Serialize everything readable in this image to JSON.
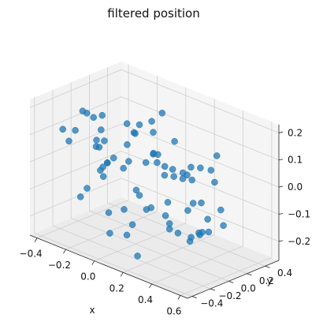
{
  "chart_data": {
    "type": "scatter",
    "title": "filtered position",
    "xlabel": "x",
    "ylabel": "y",
    "zlabel": "",
    "xlim": [
      -0.45,
      0.65
    ],
    "ylim": [
      -0.45,
      0.55
    ],
    "zlim": [
      -0.27,
      0.23
    ],
    "x_ticks": [
      -0.4,
      -0.2,
      0.0,
      0.2,
      0.4,
      0.6
    ],
    "y_ticks": [
      -0.4,
      -0.2,
      0.0,
      0.2,
      0.4
    ],
    "z_ticks": [
      -0.2,
      -0.1,
      0.0,
      0.1,
      0.2
    ],
    "x_tick_labels": [
      "−0.4",
      "−0.2",
      "0.0",
      "0.2",
      "0.4",
      "0.6"
    ],
    "y_tick_labels": [
      "−0.4",
      "−0.2",
      "0.0",
      "0.2",
      "0.4"
    ],
    "z_tick_labels": [
      "−0.2",
      "−0.1",
      "0.0",
      "0.1",
      "0.2"
    ],
    "grid": true,
    "marker_color": "#1f77b4",
    "series": [
      {
        "x": [
          -0.38,
          -0.32,
          -0.25,
          -0.18,
          -0.1,
          -0.02,
          0.06,
          0.14,
          0.22,
          0.3,
          0.38,
          0.45,
          0.5,
          0.52,
          0.48,
          -0.36,
          -0.28,
          -0.2,
          -0.12,
          -0.04,
          0.04,
          0.12,
          0.2,
          0.28,
          0.36,
          0.44,
          0.5,
          -0.34,
          -0.26,
          -0.16,
          -0.06,
          0.04,
          0.14,
          0.24,
          0.34,
          0.42,
          -0.3,
          -0.2,
          -0.1,
          0.0,
          0.1,
          0.2,
          0.3,
          0.4,
          0.46,
          -0.33,
          -0.22,
          -0.11,
          0.0,
          0.11,
          0.22,
          0.33,
          0.44,
          -0.28,
          -0.15,
          -0.02,
          0.11,
          0.24,
          0.37,
          -0.25,
          -0.1,
          0.05,
          0.2,
          0.35,
          -0.4,
          -0.35,
          0.53,
          0.55,
          0.02,
          0.18,
          -0.14,
          0.3,
          -0.06,
          0.26,
          0.4,
          -0.22
        ],
        "y": [
          -0.2,
          -0.1,
          0.05,
          0.15,
          0.2,
          -0.25,
          0.1,
          -0.05,
          0.22,
          -0.15,
          0.0,
          0.12,
          -0.08,
          0.05,
          -0.18,
          0.18,
          -0.22,
          0.02,
          -0.12,
          0.24,
          -0.02,
          0.14,
          -0.2,
          0.08,
          -0.1,
          0.2,
          0.15,
          0.0,
          0.1,
          -0.18,
          0.06,
          -0.08,
          0.2,
          -0.14,
          0.16,
          -0.04,
          -0.06,
          0.22,
          -0.2,
          0.12,
          -0.16,
          0.04,
          0.24,
          -0.22,
          0.08,
          0.12,
          -0.02,
          0.18,
          -0.24,
          0.2,
          -0.1,
          0.0,
          0.1,
          -0.14,
          0.16,
          -0.06,
          0.2,
          -0.18,
          0.14,
          0.04,
          -0.22,
          0.24,
          -0.12,
          0.06,
          0.2,
          -0.18,
          -0.2,
          0.1,
          0.26,
          -0.26,
          -0.24,
          0.26,
          0.0,
          0.02,
          -0.02,
          0.22
        ],
        "z": [
          0.1,
          -0.15,
          0.05,
          -0.05,
          0.12,
          -0.2,
          0.14,
          -0.1,
          0.0,
          0.1,
          -0.18,
          0.08,
          -0.12,
          0.06,
          -0.02,
          -0.1,
          0.12,
          -0.2,
          0.02,
          0.14,
          -0.08,
          -0.16,
          0.1,
          0.04,
          -0.14,
          0.12,
          -0.06,
          0.14,
          -0.04,
          0.08,
          -0.22,
          0.16,
          -0.02,
          0.1,
          -0.18,
          0.06,
          -0.12,
          0.1,
          0.02,
          -0.16,
          0.18,
          -0.08,
          0.04,
          0.12,
          -0.14,
          0.0,
          0.16,
          -0.12,
          0.08,
          -0.2,
          0.12,
          0.04,
          -0.1,
          0.18,
          -0.02,
          0.1,
          -0.22,
          0.14,
          -0.06,
          -0.08,
          0.16,
          -0.04,
          0.12,
          -0.18,
          0.0,
          0.06,
          0.02,
          -0.1,
          0.18,
          -0.24,
          0.2,
          -0.2,
          -0.25,
          0.16,
          0.1,
          -0.22
        ]
      }
    ]
  }
}
